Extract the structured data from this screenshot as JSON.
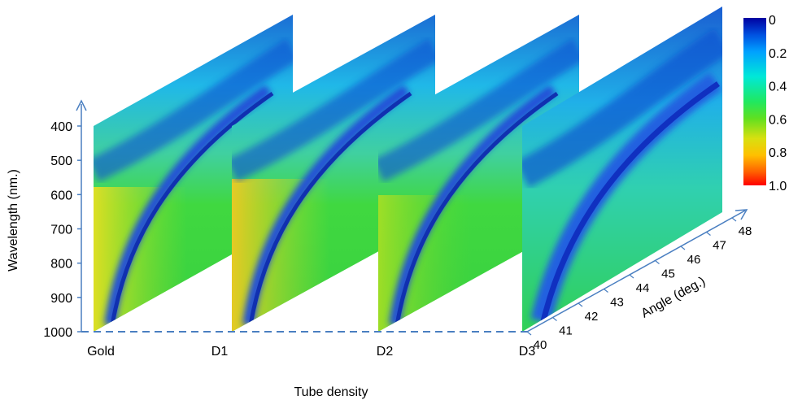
{
  "chart_data": {
    "type": "heatmap",
    "panels": [
      "Gold",
      "D1",
      "D2",
      "D3"
    ],
    "panel_wavelength_range": [
      400,
      1000
    ],
    "panel_angle_range": [
      40,
      48
    ],
    "ylabel": "Wavelength (nm.)",
    "yticks": [
      "400",
      "500",
      "600",
      "700",
      "800",
      "900",
      "1000"
    ],
    "xlabel": "Tube density",
    "xticks": [
      "Gold",
      "D1",
      "D2",
      "D3"
    ],
    "zlabel": "Angle (deg.)",
    "zticks": [
      "40",
      "41",
      "42",
      "43",
      "44",
      "45",
      "46",
      "47",
      "48"
    ],
    "colorbar": {
      "ticks": [
        "0",
        "0.2",
        "0.4",
        "0.6",
        "0.8",
        "1.0"
      ],
      "range": [
        0,
        1.0
      ],
      "colors": [
        "#0000a0",
        "#0050e0",
        "#00c8ff",
        "#00e890",
        "#30e030",
        "#d0e020",
        "#ffc000",
        "#ff6000",
        "#ff0000"
      ]
    }
  }
}
